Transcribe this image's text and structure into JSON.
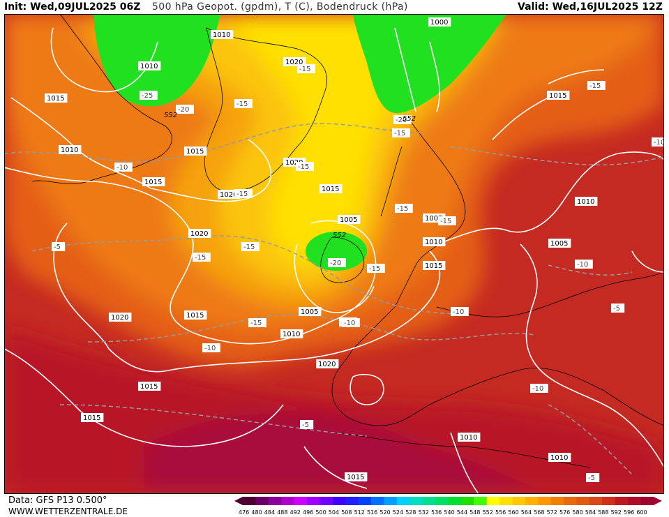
{
  "header": {
    "init": "Init: Wed,09JUL2025 06Z",
    "title": "500 hPa Geopot. (gpdm), T (C), Bodendruck (hPa)",
    "valid": "Valid: Wed,16JUL2025 12Z"
  },
  "footer": {
    "data_source": "Data: GFS P13 0.500°",
    "website": "WWW.WETTERZENTRALE.DE"
  },
  "legend": {
    "values": [
      "476",
      "480",
      "484",
      "488",
      "492",
      "496",
      "500",
      "504",
      "508",
      "512",
      "516",
      "520",
      "524",
      "528",
      "532",
      "536",
      "540",
      "544",
      "548",
      "552",
      "556",
      "560",
      "564",
      "568",
      "572",
      "576",
      "580",
      "584",
      "588",
      "592",
      "596",
      "600"
    ],
    "colors": [
      "#4b0030",
      "#6a0066",
      "#8a0099",
      "#b000cc",
      "#d000ff",
      "#a000ff",
      "#7000ff",
      "#4000ff",
      "#2020ff",
      "#0040ff",
      "#0070ff",
      "#00a0ff",
      "#00d0ff",
      "#00e0c0",
      "#00e090",
      "#00e060",
      "#00e030",
      "#20e000",
      "#40ff00",
      "#ffff00",
      "#ffe000",
      "#ffc800",
      "#ffb000",
      "#ff9800",
      "#f08000",
      "#e86a10",
      "#e05a10",
      "#d84818",
      "#d03018",
      "#c01820",
      "#b00c28",
      "#a00030"
    ]
  },
  "isobar_labels": [
    {
      "text": "1010"
    },
    {
      "text": "1010"
    },
    {
      "text": "1015"
    },
    {
      "text": "1010"
    },
    {
      "text": "1015"
    },
    {
      "text": "1015"
    },
    {
      "text": "1020"
    },
    {
      "text": "1020"
    },
    {
      "text": "1020"
    },
    {
      "text": "1015"
    },
    {
      "text": "1005"
    },
    {
      "text": "1005"
    },
    {
      "text": "1010"
    },
    {
      "text": "1015"
    },
    {
      "text": "1020"
    },
    {
      "text": "1015"
    },
    {
      "text": "1005"
    },
    {
      "text": "1010"
    },
    {
      "text": "1020"
    },
    {
      "text": "1015"
    },
    {
      "text": "1020"
    },
    {
      "text": "1000"
    },
    {
      "text": "1015"
    },
    {
      "text": "1015"
    },
    {
      "text": "1010"
    },
    {
      "text": "1005"
    },
    {
      "text": "1010"
    },
    {
      "text": "1015"
    },
    {
      "text": "1010"
    }
  ],
  "temp_labels": [
    {
      "text": "-25"
    },
    {
      "text": "-20"
    },
    {
      "text": "-15"
    },
    {
      "text": "-10"
    },
    {
      "text": "-15"
    },
    {
      "text": "-15"
    },
    {
      "text": "-15"
    },
    {
      "text": "-15"
    },
    {
      "text": "-5"
    },
    {
      "text": "-15"
    },
    {
      "text": "-15"
    },
    {
      "text": "-15"
    },
    {
      "text": "-20"
    },
    {
      "text": "-15"
    },
    {
      "text": "-15"
    },
    {
      "text": "-15"
    },
    {
      "text": "-15"
    },
    {
      "text": "-10"
    },
    {
      "text": "-10"
    },
    {
      "text": "-10"
    },
    {
      "text": "-10"
    },
    {
      "text": "-10"
    },
    {
      "text": "-5"
    },
    {
      "text": "-10"
    },
    {
      "text": "-5"
    },
    {
      "text": "-5"
    },
    {
      "text": "-20"
    },
    {
      "text": "-15"
    },
    {
      "text": "-10"
    },
    {
      "text": "-20"
    }
  ],
  "geopotential_labels": [
    {
      "text": "552"
    },
    {
      "text": "552"
    },
    {
      "text": "552"
    }
  ]
}
